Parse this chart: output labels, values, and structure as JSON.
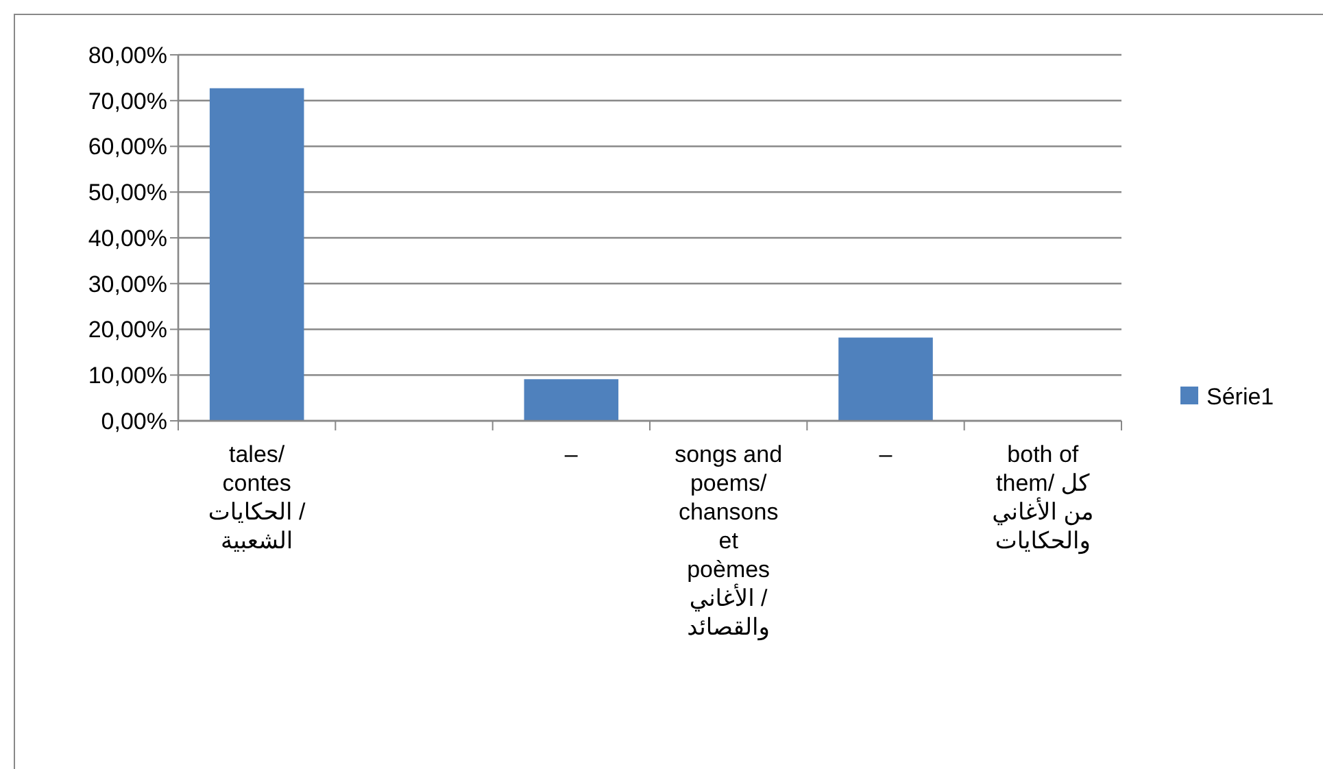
{
  "chart_data": {
    "type": "bar",
    "categories": [
      "tales/\ncontes\nالحكايات /\nالشعبية",
      null,
      "–",
      "songs and\npoems/\nchansons\net\npoèmes\nالأغاني /\nوالقصائد",
      "–",
      "both of\nthem/ كل\nمن الأغاني\nوالحكايات"
    ],
    "series": [
      {
        "name": "Série1",
        "color": "#4f81bd",
        "values": [
          72.7,
          null,
          9.1,
          null,
          18.2,
          null
        ]
      }
    ],
    "ylim": [
      0,
      80
    ],
    "yticks": [
      {
        "value": 0,
        "label": "0,00%"
      },
      {
        "value": 10,
        "label": "10,00%"
      },
      {
        "value": 20,
        "label": "20,00%"
      },
      {
        "value": 30,
        "label": "30,00%"
      },
      {
        "value": 40,
        "label": "40,00%"
      },
      {
        "value": 50,
        "label": "50,00%"
      },
      {
        "value": 60,
        "label": "60,00%"
      },
      {
        "value": 70,
        "label": "70,00%"
      },
      {
        "value": 80,
        "label": "80,00%"
      }
    ],
    "grid": "y",
    "legend": "right"
  }
}
